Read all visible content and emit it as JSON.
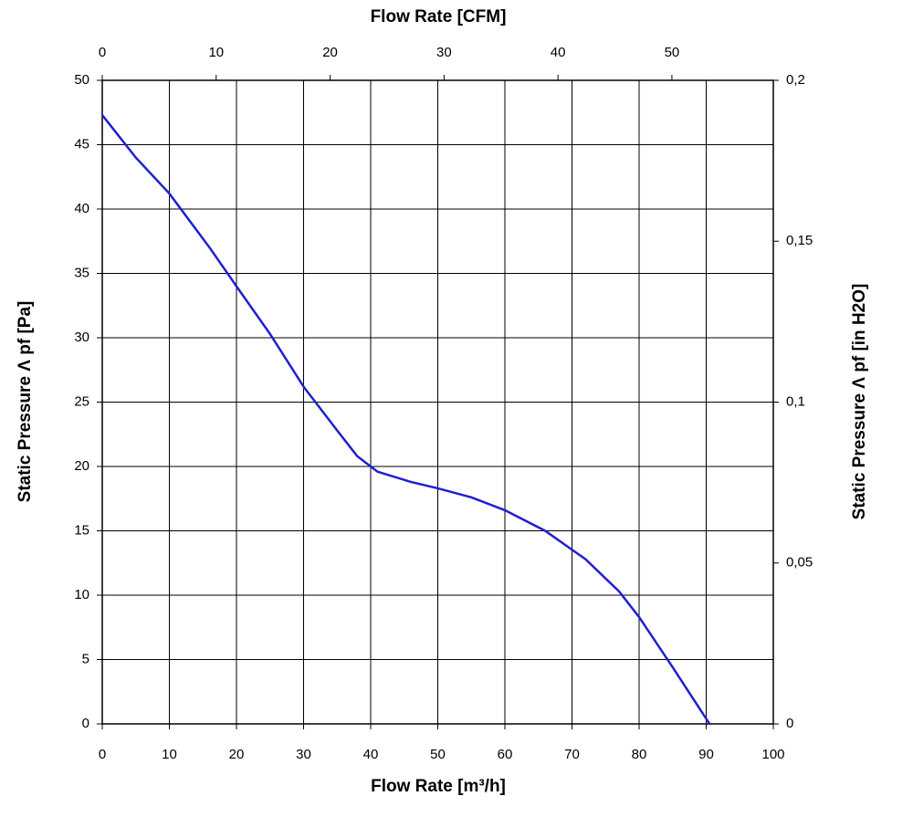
{
  "chart_data": {
    "type": "line",
    "x_label": "Flow Rate [m³/h]",
    "x2_label": "Flow Rate [CFM]",
    "y_label": "Static Pressure Λ pf [Pa]",
    "y2_label": "Static Pressure Λ pf [in H2O]",
    "x": [
      0,
      5,
      10,
      16,
      20,
      25,
      30,
      35,
      38,
      41,
      46,
      50,
      55,
      60,
      66,
      72,
      77,
      80,
      85,
      88,
      90.5
    ],
    "series": [
      {
        "color": "#1f1fcf",
        "values": [
          47.3,
          44,
          41.2,
          37,
          34,
          30.3,
          26.2,
          22.8,
          20.8,
          19.6,
          18.8,
          18.3,
          17.6,
          16.6,
          15,
          12.8,
          10.3,
          8.3,
          4.4,
          2,
          0
        ]
      }
    ],
    "xlim": [
      0,
      100
    ],
    "xticks": [
      0,
      10,
      20,
      30,
      40,
      50,
      60,
      70,
      80,
      90,
      100
    ],
    "x2lim": [
      0,
      58.9
    ],
    "x2ticks": [
      0,
      10,
      20,
      30,
      40,
      50
    ],
    "ylim": [
      0,
      50
    ],
    "yticks": [
      0,
      5,
      10,
      15,
      20,
      25,
      30,
      35,
      40,
      45,
      50
    ],
    "y2lim": [
      0,
      0.2
    ],
    "y2ticks": [
      0,
      {
        "value": 0.05,
        "label": "0,05"
      },
      {
        "value": 0.1,
        "label": "0,1"
      },
      {
        "value": 0.15,
        "label": "0,15"
      },
      {
        "value": 0.2,
        "label": "0,2"
      }
    ],
    "grid": true
  }
}
